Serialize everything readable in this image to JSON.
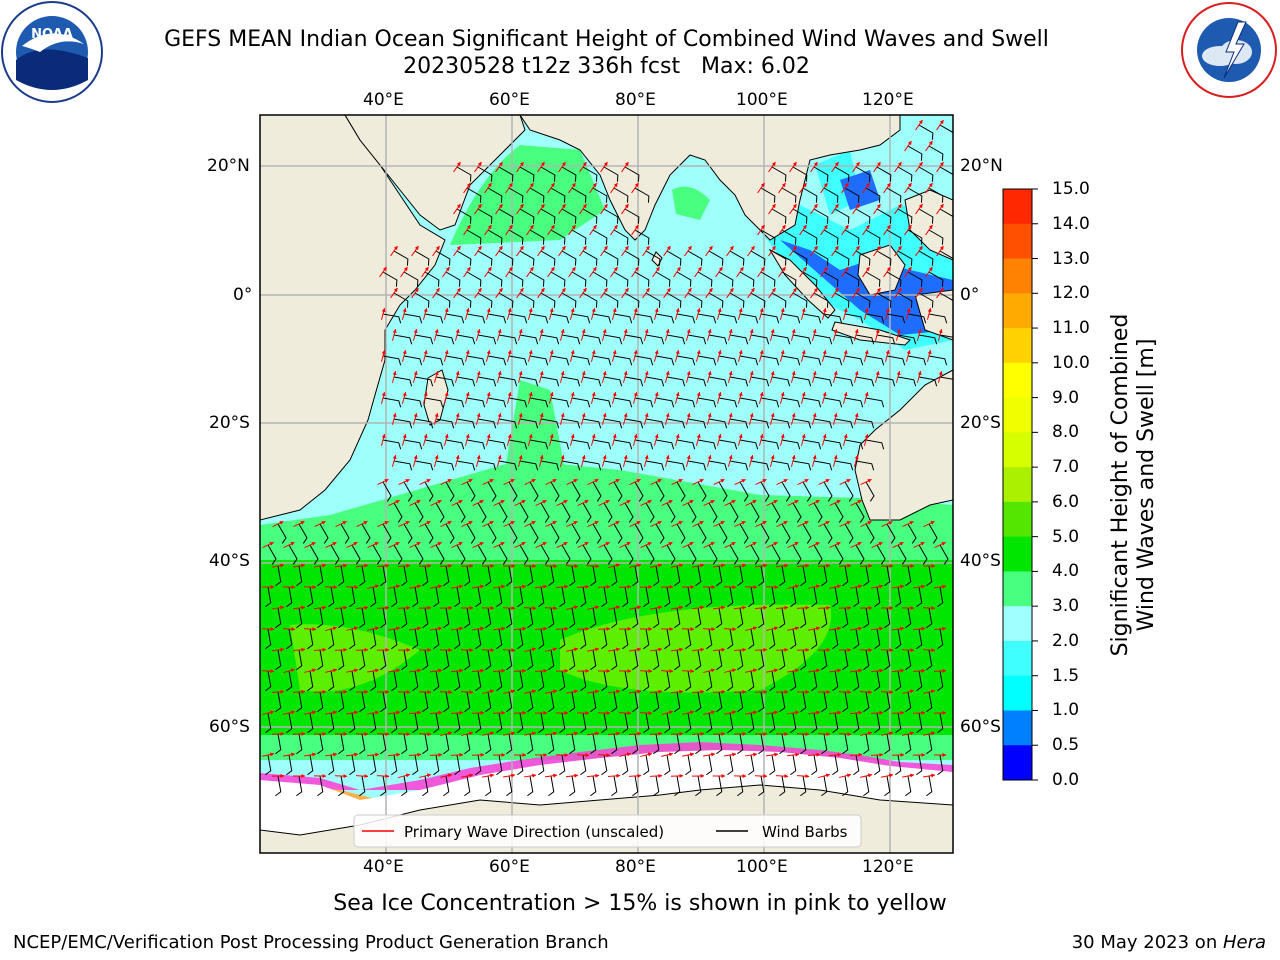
{
  "header": {
    "title_line1": "GEFS MEAN Indian Ocean Significant Height of Combined Wind Waves and Swell",
    "title_line2": "20230528 t12z 336h fcst   Max: 6.02"
  },
  "logos": {
    "left": {
      "icon": "noaa-logo-icon",
      "text": "NOAA",
      "ring_text": "NATIONAL OCEANIC AND ATMOSPHERIC ADMINISTRATION · U.S. DEPARTMENT OF COMMERCE"
    },
    "right": {
      "icon": "nws-logo-icon",
      "ring_text": "NATIONAL WEATHER SERVICE"
    }
  },
  "map": {
    "lon_labels_top": [
      "40°E",
      "60°E",
      "80°E",
      "100°E",
      "120°E"
    ],
    "lon_labels_bottom": [
      "40°E",
      "60°E",
      "80°E",
      "100°E",
      "120°E"
    ],
    "lat_labels_left": [
      "20°N",
      "0°",
      "20°S",
      "40°S",
      "60°S"
    ],
    "lat_labels_right": [
      "20°N",
      "0°",
      "20°S",
      "40°S",
      "60°S"
    ],
    "colors": {
      "land": "#efecdc",
      "ocean_low": "#9ffffb",
      "ocean_mid": "#48ff80",
      "ocean_high": "#00e600",
      "peak": "#55f000",
      "arrow": "#ff0000",
      "barb": "#000000",
      "grid": "#b4b4b4"
    }
  },
  "legend": {
    "items": [
      {
        "label": "Primary Wave Direction (unscaled)",
        "color": "#ff0000"
      },
      {
        "label": "Wind Barbs",
        "color": "#000000"
      }
    ]
  },
  "colorbar": {
    "title_line1": "Significant Height of Combined",
    "title_line2": "Wind Waves and Swell [m]",
    "ticks": [
      "0.0",
      "0.5",
      "1.0",
      "1.5",
      "2.0",
      "3.0",
      "4.0",
      "5.0",
      "6.0",
      "7.0",
      "8.0",
      "9.0",
      "10.0",
      "11.0",
      "12.0",
      "13.0",
      "14.0",
      "15.0"
    ],
    "colors": [
      "#0000ff",
      "#0080ff",
      "#00ffff",
      "#40ffff",
      "#a0ffff",
      "#48ff80",
      "#00e600",
      "#55e600",
      "#aaf000",
      "#d6ff00",
      "#f0ff00",
      "#ffff00",
      "#ffd200",
      "#ffaa00",
      "#ff8200",
      "#ff5000",
      "#ff2800",
      "#ff0000"
    ]
  },
  "caption": "Sea Ice Concentration > 15% is shown in pink to yellow",
  "footer": {
    "left": "NCEP/EMC/Verification Post Processing Product Generation Branch",
    "right_prefix": "30 May 2023 on ",
    "right_host": "Hera"
  }
}
